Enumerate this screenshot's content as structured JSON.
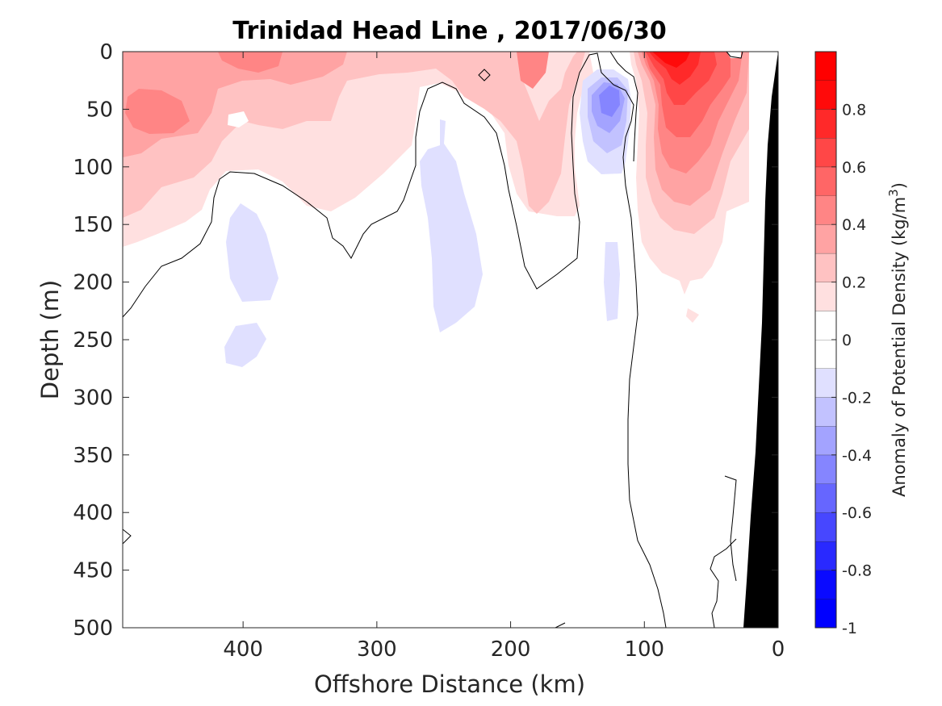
{
  "chart_data": {
    "type": "heatmap",
    "title": "Trinidad Head Line , 2017/06/30",
    "xlabel": "Offshore Distance (km)",
    "ylabel": "Depth (m)",
    "colorbar_label": "Anomaly of Potential Density (kg/m",
    "colorbar_label_superscript": "3",
    "colorbar_label_suffix": ")",
    "x_reversed": true,
    "y_reversed": true,
    "xlim": [
      490,
      0
    ],
    "ylim": [
      0,
      500
    ],
    "x_ticks": [
      400,
      300,
      200,
      100,
      0
    ],
    "y_ticks": [
      0,
      50,
      100,
      150,
      200,
      250,
      300,
      350,
      400,
      450,
      500
    ],
    "colorbar_ticks": [
      0.8,
      0.6,
      0.4,
      0.2,
      0,
      -0.2,
      -0.4,
      -0.6,
      -0.8,
      -1
    ],
    "colorbar_range": [
      -1,
      1
    ],
    "contour_levels": [
      -1,
      -0.9,
      -0.8,
      -0.7,
      -0.6,
      -0.5,
      -0.4,
      -0.3,
      -0.2,
      -0.1,
      0,
      0.1,
      0.2,
      0.3,
      0.4,
      0.5,
      0.6,
      0.7,
      0.8,
      0.9,
      1
    ],
    "colors": {
      "positive": [
        "#ffffff",
        "#ffe0e0",
        "#ffc2c2",
        "#ffa3a3",
        "#ff8585",
        "#ff6666",
        "#ff4747",
        "#ff2929",
        "#ff0a0a",
        "#ff0000"
      ],
      "negative": [
        "#ffffff",
        "#e0e0ff",
        "#c2c2ff",
        "#a3a3ff",
        "#8585ff",
        "#6666ff",
        "#4747ff",
        "#2929ff",
        "#0a0aff",
        "#0000ff"
      ],
      "bathymetry": "#000000",
      "zero_contour": "#000000"
    },
    "features": [
      {
        "name": "surface positive anomaly offshore",
        "sign": "positive",
        "x_range": [
          490,
          160
        ],
        "depth_range": [
          0,
          170
        ],
        "peak": 0.45
      },
      {
        "name": "weak negative anomaly",
        "sign": "negative",
        "x_range": [
          410,
          370
        ],
        "depth_range": [
          130,
          275
        ],
        "peak": -0.15
      },
      {
        "name": "weak negative anomaly",
        "sign": "negative",
        "x_range": [
          270,
          220
        ],
        "depth_range": [
          60,
          245
        ],
        "peak": -0.15
      },
      {
        "name": "negative anomaly core",
        "sign": "negative",
        "x_range": [
          150,
          110
        ],
        "depth_range": [
          20,
          110
        ],
        "peak": -0.5
      },
      {
        "name": "strong positive anomaly near coast",
        "sign": "positive",
        "x_range": [
          110,
          25
        ],
        "depth_range": [
          0,
          240
        ],
        "peak": 0.9
      }
    ]
  }
}
